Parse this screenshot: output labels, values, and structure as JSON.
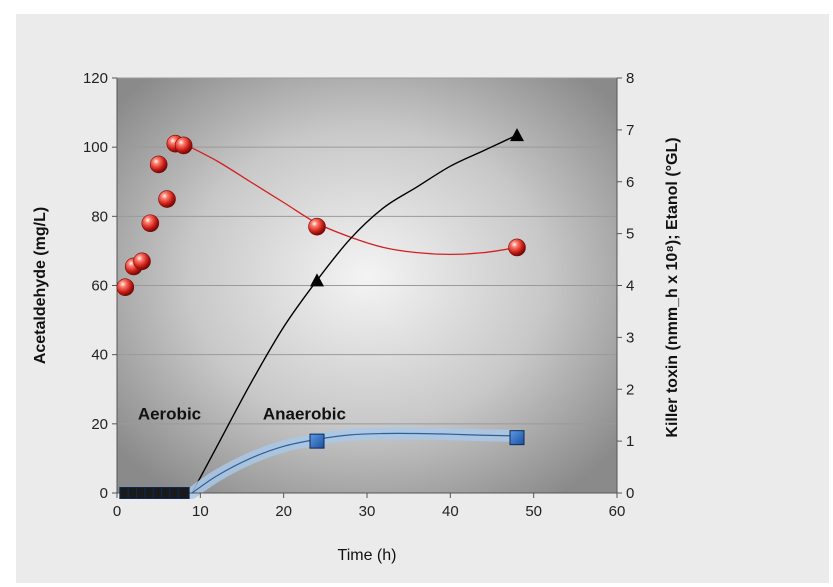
{
  "chart_data": {
    "type": "scatter",
    "xlabel": "Time (h)",
    "ylabel": "Acetaldehyde (mg/L)",
    "y2label": "Killer toxin (nmm_h x 10⁸); Etanol (°GL)",
    "xlim": [
      0,
      60
    ],
    "ylim": [
      0,
      120
    ],
    "y2lim": [
      0,
      8
    ],
    "x_ticks": [
      0,
      10,
      20,
      30,
      40,
      50,
      60
    ],
    "y_ticks": [
      0,
      20,
      40,
      60,
      80,
      100,
      120
    ],
    "y2_ticks": [
      0,
      1,
      2,
      3,
      4,
      5,
      6,
      7,
      8
    ],
    "grid": true,
    "annotations": [
      {
        "text": "Aerobic",
        "x": 2.5,
        "y": 23
      },
      {
        "text": "Anaerobic",
        "x": 17.5,
        "y": 23
      }
    ],
    "series": [
      {
        "marker": "sphere",
        "axis": "left",
        "color": "#d42020",
        "points": [
          [
            1,
            59.5
          ],
          [
            2,
            65.5
          ],
          [
            3,
            67
          ],
          [
            4,
            78
          ],
          [
            5,
            95
          ],
          [
            6,
            85
          ],
          [
            7,
            101
          ],
          [
            8,
            100.5
          ],
          [
            24,
            77
          ],
          [
            48,
            71
          ]
        ],
        "trend": [
          [
            8,
            101
          ],
          [
            12,
            96
          ],
          [
            16,
            90
          ],
          [
            20,
            84
          ],
          [
            24,
            78
          ],
          [
            28,
            74
          ],
          [
            32,
            71
          ],
          [
            36,
            69.5
          ],
          [
            40,
            69
          ],
          [
            44,
            69.5
          ],
          [
            48,
            71
          ]
        ]
      },
      {
        "marker": "triangle",
        "axis": "right",
        "color": "#000000",
        "points": [
          [
            24,
            4.1
          ],
          [
            48,
            6.9
          ]
        ],
        "trend": [
          [
            9,
            0
          ],
          [
            12,
            0.9
          ],
          [
            16,
            2.1
          ],
          [
            20,
            3.2
          ],
          [
            24,
            4.1
          ],
          [
            28,
            4.9
          ],
          [
            32,
            5.5
          ],
          [
            36,
            5.9
          ],
          [
            40,
            6.3
          ],
          [
            44,
            6.6
          ],
          [
            48,
            6.9
          ]
        ]
      },
      {
        "marker": "square",
        "axis": "left",
        "color": "#2b6cc4",
        "points": [
          [
            1,
            0
          ],
          [
            2,
            0
          ],
          [
            3,
            0
          ],
          [
            4,
            0
          ],
          [
            5,
            0
          ],
          [
            6,
            0
          ],
          [
            7,
            0
          ],
          [
            8,
            0
          ],
          [
            24,
            15
          ],
          [
            48,
            16
          ]
        ],
        "trend": [
          [
            9,
            0
          ],
          [
            12,
            5
          ],
          [
            16,
            10
          ],
          [
            20,
            13.5
          ],
          [
            24,
            15.5
          ],
          [
            28,
            16.8
          ],
          [
            32,
            17.2
          ],
          [
            36,
            17.2
          ],
          [
            40,
            17
          ],
          [
            44,
            16.7
          ],
          [
            48,
            16.5
          ]
        ]
      }
    ]
  }
}
